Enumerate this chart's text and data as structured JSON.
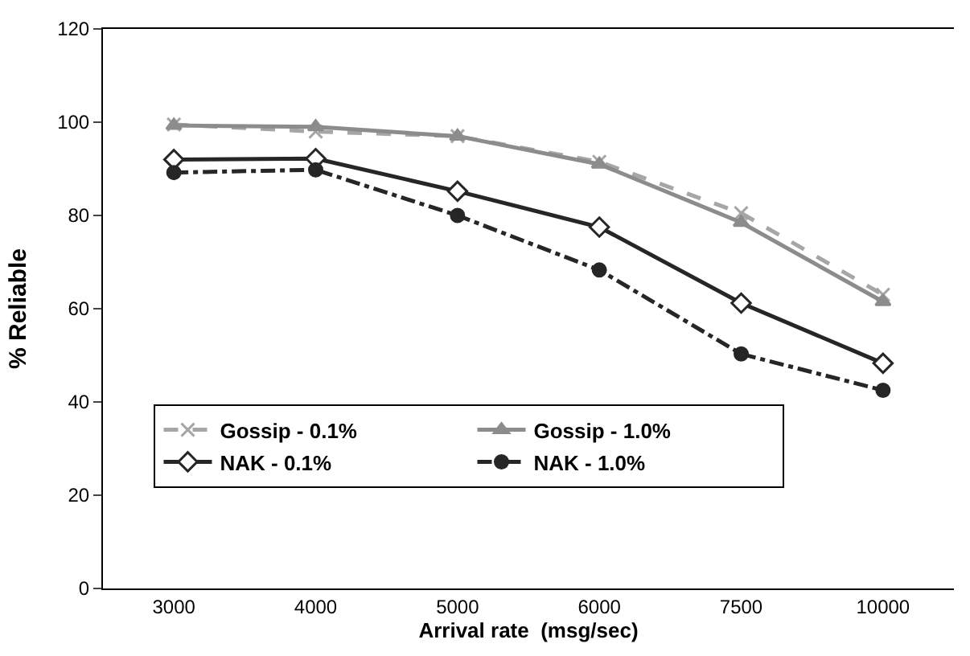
{
  "chart_data": {
    "type": "line",
    "xlabel": "Arrival rate  (msg/sec)",
    "ylabel": "% Reliable",
    "categories": [
      "3000",
      "4000",
      "5000",
      "6000",
      "7500",
      "10000"
    ],
    "ylim": [
      0,
      120
    ],
    "yticks": [
      0,
      20,
      40,
      60,
      80,
      100,
      120
    ],
    "legend": "bottom left",
    "series": [
      {
        "name": "Gossip - 0.1%",
        "color": "#a6a6a6",
        "marker": "cross",
        "line_style": "dashed",
        "values": [
          99.5,
          98,
          97,
          91.5,
          80.5,
          63
        ]
      },
      {
        "name": "Gossip - 1.0%",
        "color": "#8c8c8c",
        "marker": "triangle",
        "line_style": "solid",
        "values": [
          99.3,
          99,
          97,
          91,
          78.5,
          61.5
        ]
      },
      {
        "name": "NAK - 0.1%",
        "color": "#262626",
        "marker": "diamond",
        "line_style": "solid",
        "values": [
          92,
          92.2,
          85.2,
          77.5,
          61.2,
          48.3
        ]
      },
      {
        "name": "NAK - 1.0%",
        "color": "#262626",
        "marker": "circle",
        "line_style": "dashdot",
        "values": [
          89.2,
          89.8,
          80,
          68.3,
          50.3,
          42.5
        ]
      }
    ]
  }
}
